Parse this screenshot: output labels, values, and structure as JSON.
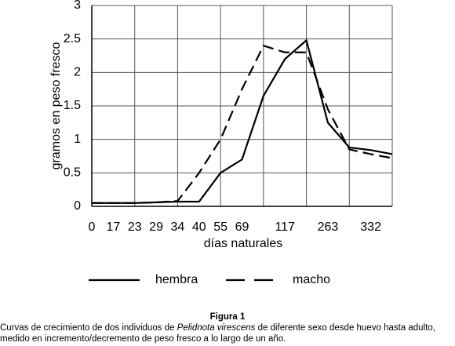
{
  "chart_data": {
    "type": "line",
    "ylabel": "gramos en peso fresco",
    "xlabel": "días naturales",
    "categories": [
      "0",
      "17",
      "23",
      "29",
      "34",
      "40",
      "55",
      "69",
      null,
      "117",
      null,
      "263",
      null,
      "332",
      null
    ],
    "series": [
      {
        "name": "hembra",
        "color": "#000000",
        "linestyle": "solid",
        "values": [
          0.05,
          0.05,
          0.05,
          0.06,
          0.07,
          0.07,
          0.5,
          0.7,
          1.65,
          2.2,
          2.48,
          1.25,
          0.88,
          0.84,
          0.78
        ]
      },
      {
        "name": "macho",
        "color": "#000000",
        "linestyle": "dashed",
        "values": [
          0.05,
          0.05,
          0.05,
          0.06,
          0.08,
          0.5,
          1.0,
          1.75,
          2.4,
          2.3,
          2.3,
          1.45,
          0.85,
          0.78,
          0.72
        ]
      }
    ],
    "ylim": [
      0,
      3
    ],
    "yticks": [
      0,
      0.5,
      1,
      1.5,
      2,
      2.5,
      3
    ],
    "grid": true
  },
  "caption": {
    "label": "Figura 1",
    "text_before": "Curvas de crecimiento de dos individuos de ",
    "species": "Pelidnota virescens",
    "text_after": " de diferente sexo desde huevo hasta adulto, medido en incremento/decremento de peso fresco a lo largo de un año."
  }
}
